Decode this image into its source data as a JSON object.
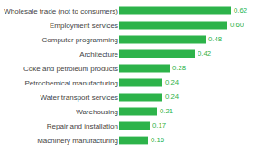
{
  "chart_data": {
    "type": "bar",
    "orientation": "horizontal",
    "categories": [
      "Wholesale trade (not to consumers)",
      "Employment services",
      "Computer programming",
      "Architecture",
      "Coke and petroleum products",
      "Petrochemical manufacturing",
      "Water transport services",
      "Warehousing",
      "Repair and installation",
      "Machinery manufacturing"
    ],
    "values": [
      0.62,
      0.6,
      0.48,
      0.42,
      0.28,
      0.24,
      0.24,
      0.21,
      0.17,
      0.16
    ],
    "value_labels": [
      "0.62",
      "0.60",
      "0.48",
      "0.42",
      "0.28",
      "0.24",
      "0.24",
      "0.21",
      "0.17",
      "0.16"
    ],
    "data_labels": true,
    "color": "#2db34a",
    "xlim": [
      0,
      0.78
    ],
    "grid": false,
    "tick_labels": "y"
  }
}
